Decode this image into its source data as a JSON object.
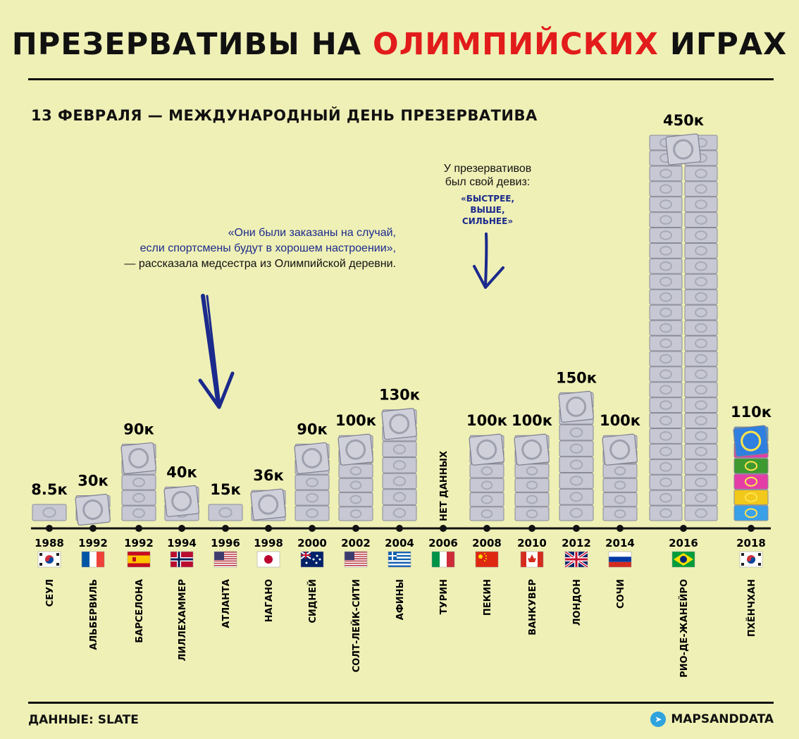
{
  "title": {
    "part1": "ПРЕЗЕРВАТИВЫ НА",
    "accent": "ОЛИМПИЙСКИХ",
    "part2": "ИГРАХ"
  },
  "subtitle": "13 ФЕВРАЛЯ — МЕЖДУНАРОДНЫЙ ДЕНЬ ПРЕЗЕРВАТИВА",
  "quote": {
    "line1": "«Они были заказаны на случай,",
    "line2": "если спортсмены будут в хорошем настроении»,",
    "line3": "— рассказала медсестра из Олимпийской деревни."
  },
  "motto": {
    "intro1": "У презервативов",
    "intro2": "был свой девиз:",
    "q1": "«БЫСТРЕЕ,",
    "q2": "ВЫШЕ,",
    "q3": "СИЛЬНЕЕ»"
  },
  "source": "ДАННЫЕ: SLATE",
  "brand": "MAPSANDDATA",
  "colors": {
    "background": "#eff0b6",
    "accent": "#e21b1b",
    "quote": "#1b2a8c",
    "condom": "#c7c8d4"
  },
  "chart_data": {
    "type": "bar",
    "ylabel": "",
    "categories": [
      "1988",
      "1992",
      "1992",
      "1994",
      "1996",
      "1998",
      "2000",
      "2002",
      "2004",
      "2006",
      "2008",
      "2010",
      "2012",
      "2014",
      "2016",
      "2018"
    ],
    "cities": [
      "СЕУЛ",
      "АЛЬБЕРВИЛЬ",
      "БАРСЕЛОНА",
      "ЛИЛЛЕХАММЕР",
      "АТЛАНТА",
      "НАГАНО",
      "СИДНЕЙ",
      "СОЛТ-ЛЕЙК-СИТИ",
      "АФИНЫ",
      "ТУРИН",
      "ПЕКИН",
      "ВАНКУВЕР",
      "ЛОНДОН",
      "СОЧИ",
      "РИО-ДЕ-ЖАНЕЙРО",
      "ПХЁНЧХАН"
    ],
    "flags": [
      "kr",
      "fr",
      "es",
      "no",
      "us",
      "jp",
      "au",
      "us",
      "gr",
      "it",
      "cn",
      "ca",
      "gb",
      "ru",
      "br",
      "kr"
    ],
    "values": [
      8.5,
      30,
      90,
      40,
      15,
      36,
      90,
      100,
      130,
      null,
      100,
      100,
      150,
      100,
      450,
      110
    ],
    "value_labels": [
      "8.5к",
      "30к",
      "90к",
      "40к",
      "15к",
      "36к",
      "90к",
      "100к",
      "130к",
      "НЕТ ДАННЫХ",
      "100к",
      "100к",
      "150к",
      "100к",
      "450к",
      "110к"
    ],
    "no_data_label": "НЕТ ДАННЫХ"
  }
}
